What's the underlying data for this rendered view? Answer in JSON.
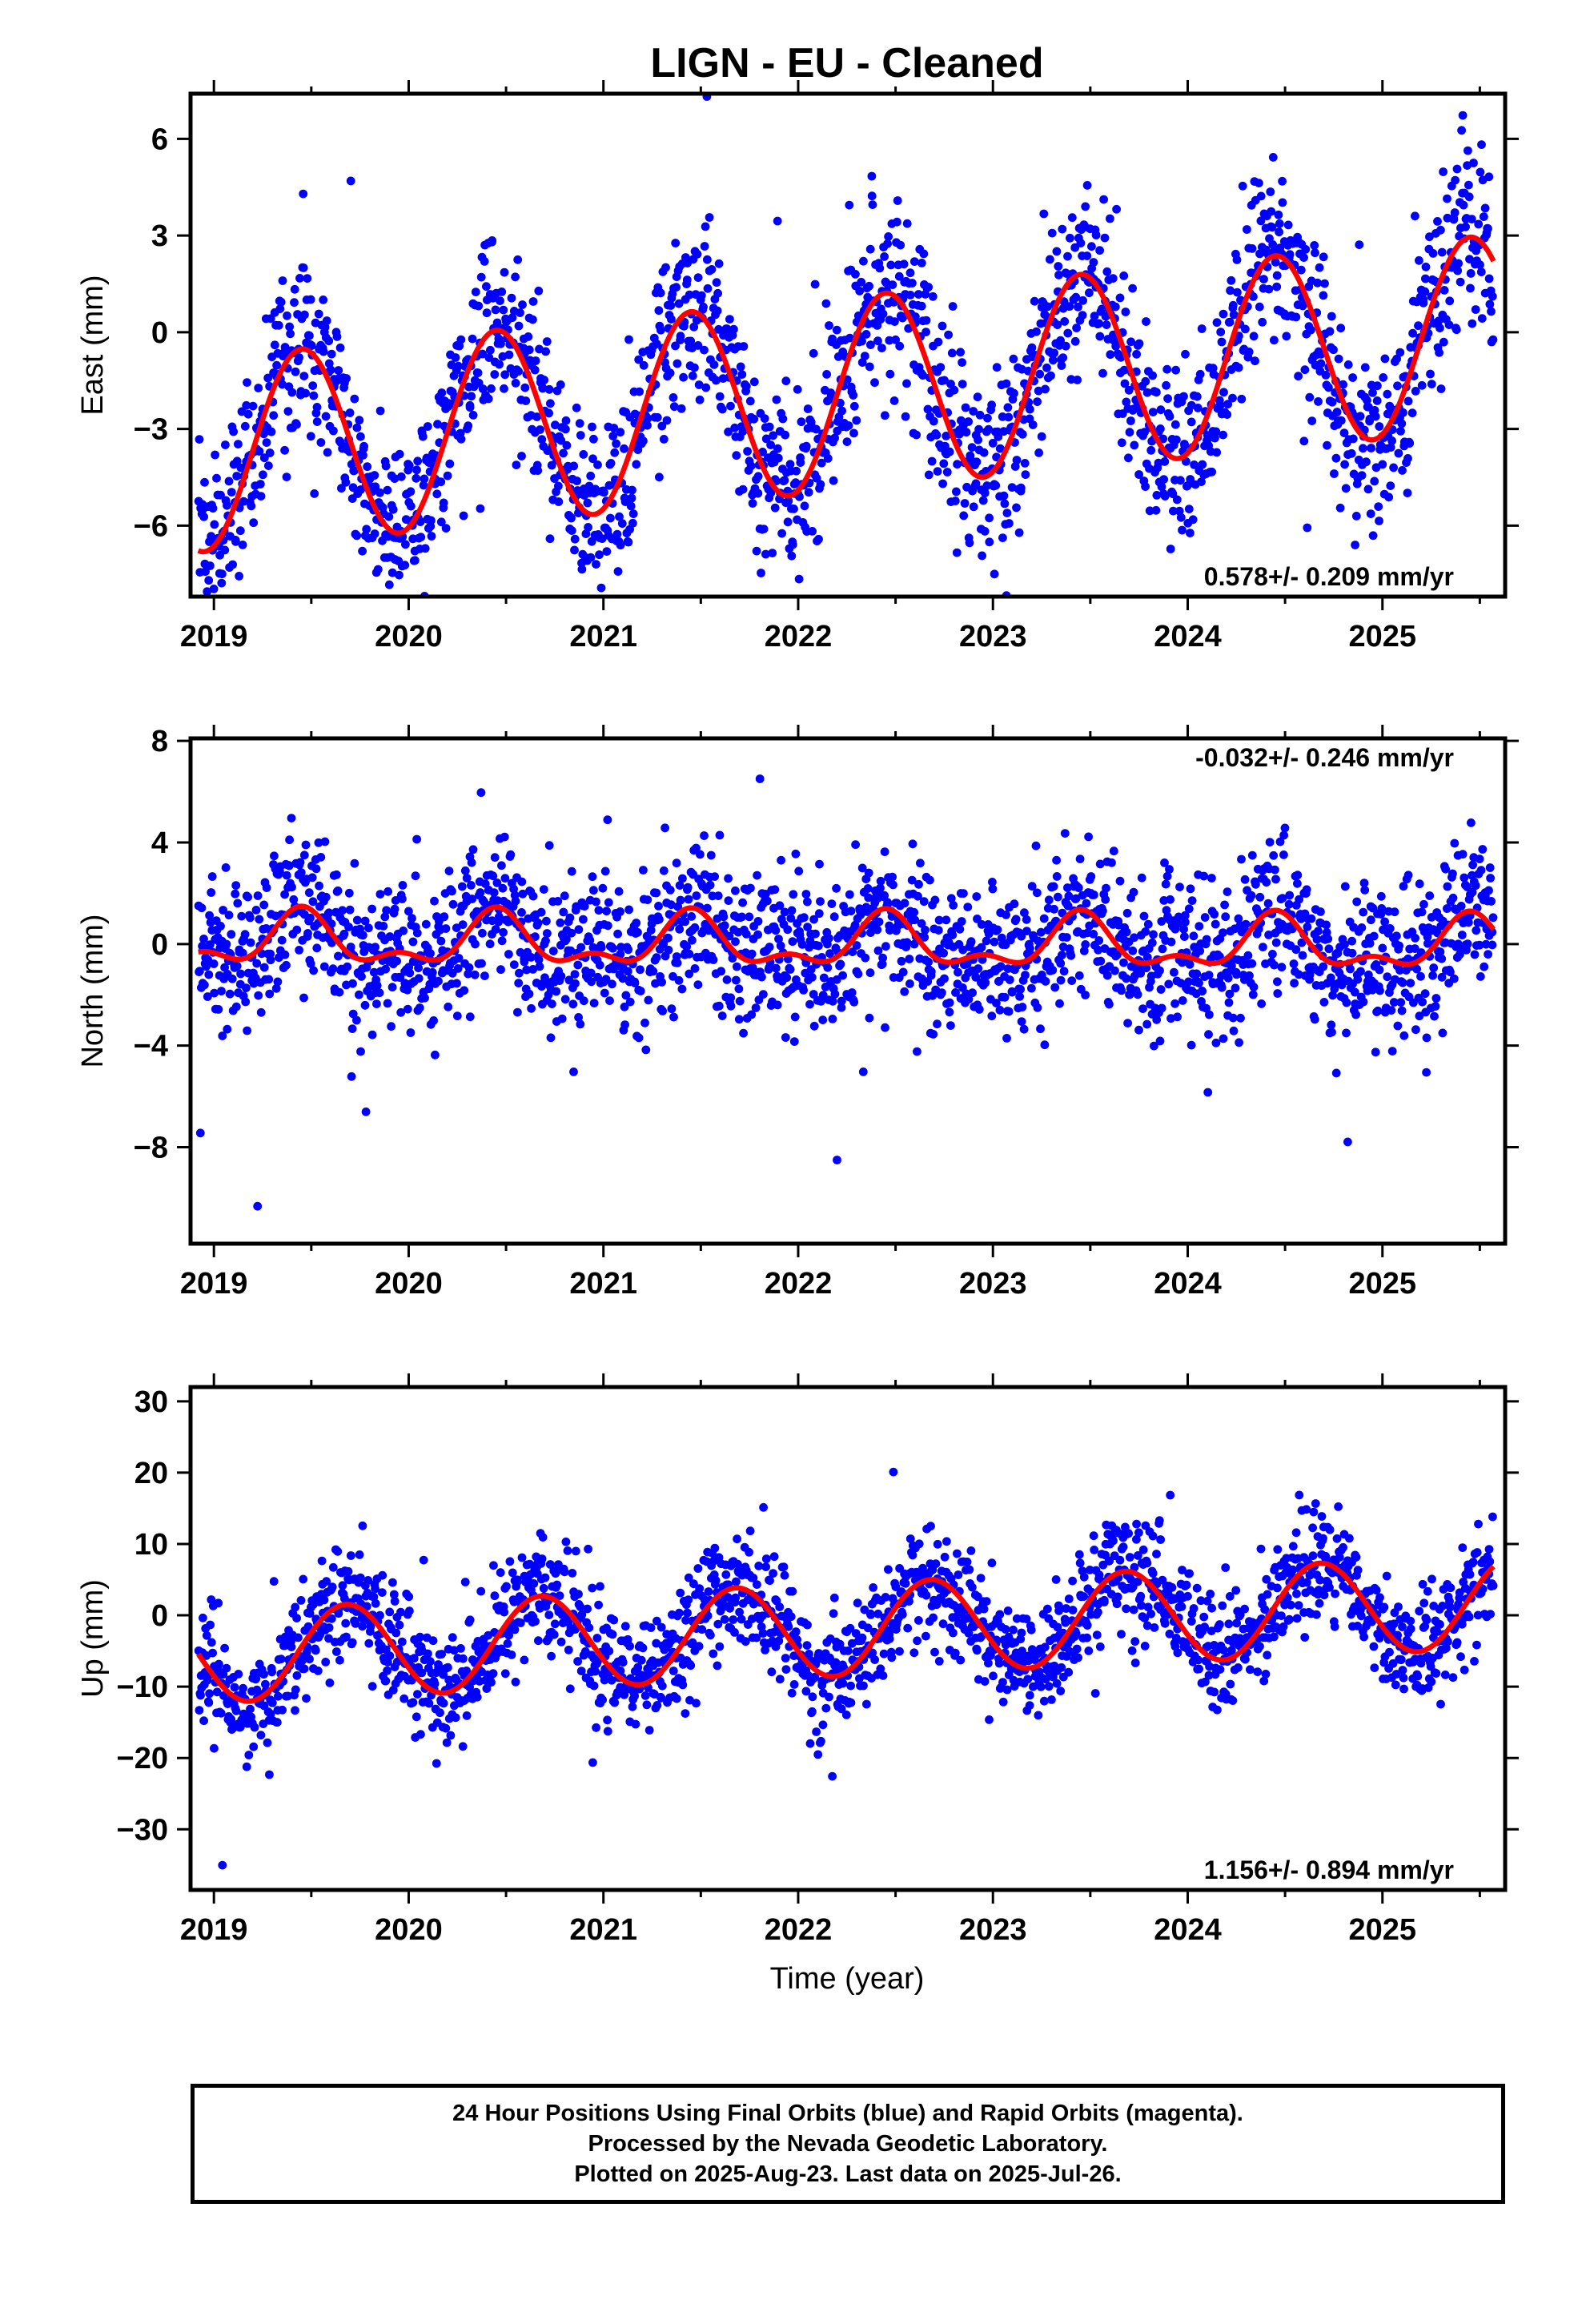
{
  "title": "LIGN  - EU - Cleaned",
  "x_axis_label": "Time (year)",
  "colors": {
    "points": "#0000ff",
    "fit": "#ff0000",
    "frame": "#000000"
  },
  "footer": {
    "line1": "24 Hour Positions Using Final Orbits (blue) and Rapid Orbits (magenta).",
    "line2": "Processed by the Nevada Geodetic Laboratory.",
    "line3": "Plotted on 2025-Aug-23. Last data on 2025-Jul-26."
  },
  "chart_data": [
    {
      "type": "scatter",
      "ylabel": "East (mm)",
      "rate_label": "0.578+/- 0.209 mm/yr",
      "rate_position": "bottom-right",
      "xlim": [
        2018.88,
        2025.63
      ],
      "ylim": [
        -8.2,
        7.4
      ],
      "xticks": [
        2019,
        2020,
        2021,
        2022,
        2023,
        2024,
        2025
      ],
      "yticks": [
        -6,
        -3,
        0,
        3,
        6
      ],
      "series": [
        {
          "kind": "points",
          "t_start": 2018.92,
          "t_end": 2025.57,
          "mean_offset": -1.9,
          "trend_mm_per_yr": 0.578,
          "annual_amplitude": 3.0,
          "peak_phase_year": 0.45,
          "scatter_sd": 1.4
        },
        {
          "kind": "fit",
          "t_start": 2018.92,
          "t_end": 2025.57,
          "mean_offset": -1.9,
          "trend_mm_per_yr": 0.578,
          "annual_amplitude": 3.0,
          "peak_phase_year": 0.45
        }
      ]
    },
    {
      "type": "scatter",
      "ylabel": "North (mm)",
      "rate_label": "-0.032+/- 0.246 mm/yr",
      "rate_position": "top-right",
      "xlim": [
        2018.88,
        2025.63
      ],
      "ylim": [
        -11.8,
        8.1
      ],
      "xticks": [
        2019,
        2020,
        2021,
        2022,
        2023,
        2024,
        2025
      ],
      "yticks": [
        -8,
        -4,
        0,
        4,
        8
      ],
      "series": [
        {
          "kind": "points",
          "t_start": 2018.92,
          "t_end": 2025.57,
          "mean_offset": 0.0,
          "trend_mm_per_yr": -0.032,
          "annual_amplitude": 0.9,
          "peak_phase_year": 0.45,
          "semiannual_amplitude": 0.5,
          "scatter_sd": 1.5
        },
        {
          "kind": "fit",
          "t_start": 2018.92,
          "t_end": 2025.57,
          "mean_offset": 0.0,
          "trend_mm_per_yr": -0.032,
          "annual_amplitude": 0.9,
          "peak_phase_year": 0.45,
          "semiannual_amplitude": 0.5
        }
      ]
    },
    {
      "type": "scatter",
      "ylabel": "Up (mm)",
      "rate_label": "1.156+/- 0.894 mm/yr",
      "rate_position": "bottom-right",
      "xlim": [
        2018.88,
        2025.63
      ],
      "ylim": [
        -38.5,
        32.0
      ],
      "xticks": [
        2019,
        2020,
        2021,
        2022,
        2023,
        2024,
        2025
      ],
      "yticks": [
        -30,
        -20,
        -10,
        0,
        10,
        20,
        30
      ],
      "series": [
        {
          "kind": "points",
          "t_start": 2018.92,
          "t_end": 2025.57,
          "mean_offset": -2.0,
          "trend_mm_per_yr": 1.156,
          "annual_amplitude": 6.5,
          "peak_phase_year": 0.68,
          "scatter_sd": 4.0
        },
        {
          "kind": "fit",
          "t_start": 2018.92,
          "t_end": 2025.57,
          "mean_offset": -2.0,
          "trend_mm_per_yr": 1.156,
          "annual_amplitude": 6.5,
          "peak_phase_year": 0.68
        }
      ]
    }
  ]
}
